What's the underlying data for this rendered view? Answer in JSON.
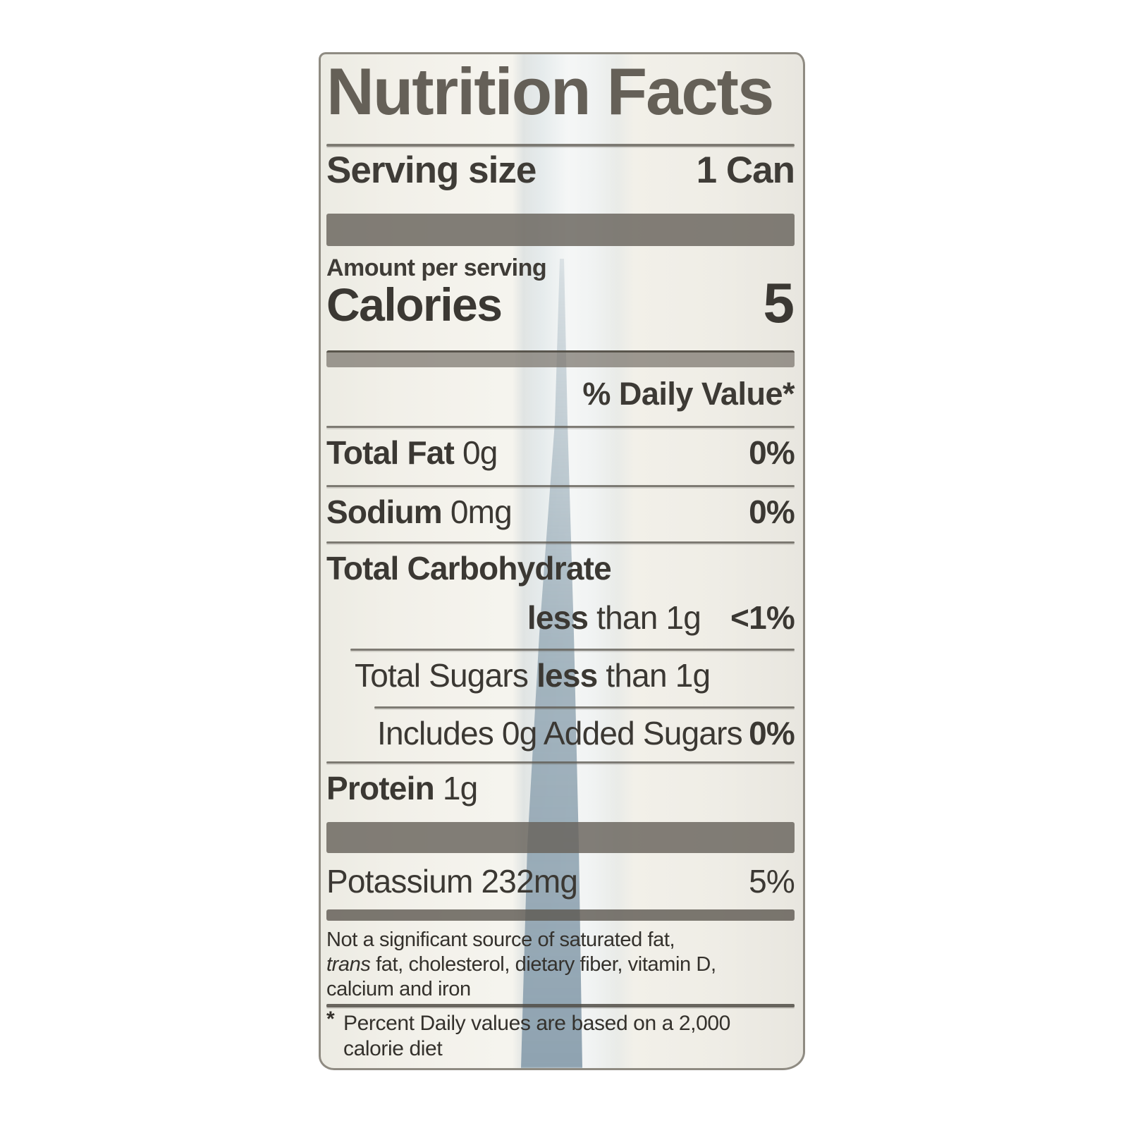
{
  "label": {
    "title": "Nutrition Facts",
    "serving_size_label": "Serving size",
    "serving_size_value": "1 Can",
    "amount_per_serving": "Amount per serving",
    "calories_label": "Calories",
    "calories_value": "5",
    "daily_value_header": "% Daily Value*",
    "rows": {
      "total_fat": {
        "name": "Total Fat",
        "amount": " 0g",
        "dv": "0%"
      },
      "sodium": {
        "name": "Sodium",
        "amount": " 0mg",
        "dv": "0%"
      },
      "total_carb": {
        "name": "Total Carbohydrate"
      },
      "total_carb_amount": {
        "bold": "less",
        "rest": " than 1g",
        "dv": "<1%"
      },
      "total_sugars": {
        "prefix": "Total Sugars ",
        "bold": "less",
        "rest": " than 1g"
      },
      "added_sugars": {
        "text": "Includes 0g Added Sugars",
        "dv": "0%"
      },
      "protein": {
        "name": "Protein",
        "amount": " 1g"
      },
      "potassium": {
        "text": "Potassium 232mg",
        "dv": "5%"
      }
    },
    "footnotes": {
      "not_significant_line1": "Not a significant source of saturated fat,",
      "not_significant_italic": "trans",
      "not_significant_line2_rest": " fat, cholesterol, dietary fiber, vitamin D,",
      "not_significant_line3": "calcium and iron",
      "dv_star": "*",
      "dv_line1": "Percent Daily values are based on a 2,000",
      "dv_line2": "calorie diet"
    },
    "colors": {
      "label_background": "#f1efe8",
      "text": "#3b3833",
      "separator_bar": "#68635b",
      "reflection_stripe": "#8fa3b1"
    }
  }
}
